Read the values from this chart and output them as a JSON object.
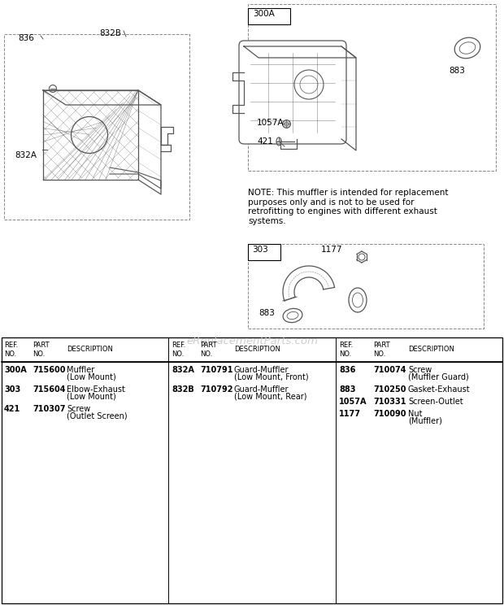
{
  "bg_color": "#ffffff",
  "watermark": "eReplacementParts.com",
  "note_text": "NOTE: This muffler is intended for replacement\npurposes only and is not to be used for\nretrofitting to engines with different exhaust\nsystems.",
  "columns": [
    {
      "rows": [
        {
          "ref": "300A",
          "part": "715600",
          "desc": "Muffler\n(Low Mount)"
        },
        {
          "ref": "303",
          "part": "715604",
          "desc": "Elbow-Exhaust\n(Low Mount)"
        },
        {
          "ref": "421",
          "part": "710307",
          "desc": "Screw\n(Outlet Screen)"
        }
      ]
    },
    {
      "rows": [
        {
          "ref": "832A",
          "part": "710791",
          "desc": "Guard-Muffler\n(Low Mount, Front)"
        },
        {
          "ref": "832B",
          "part": "710792",
          "desc": "Guard-Muffler\n(Low Mount, Rear)"
        }
      ]
    },
    {
      "rows": [
        {
          "ref": "836",
          "part": "710074",
          "desc": "Screw\n(Muffler Guard)"
        },
        {
          "ref": "883",
          "part": "710250",
          "desc": "Gasket-Exhaust"
        },
        {
          "ref": "1057A",
          "part": "710331",
          "desc": "Screen-Outlet"
        },
        {
          "ref": "1177",
          "part": "710090",
          "desc": "Nut\n(Muffler)"
        }
      ]
    }
  ]
}
